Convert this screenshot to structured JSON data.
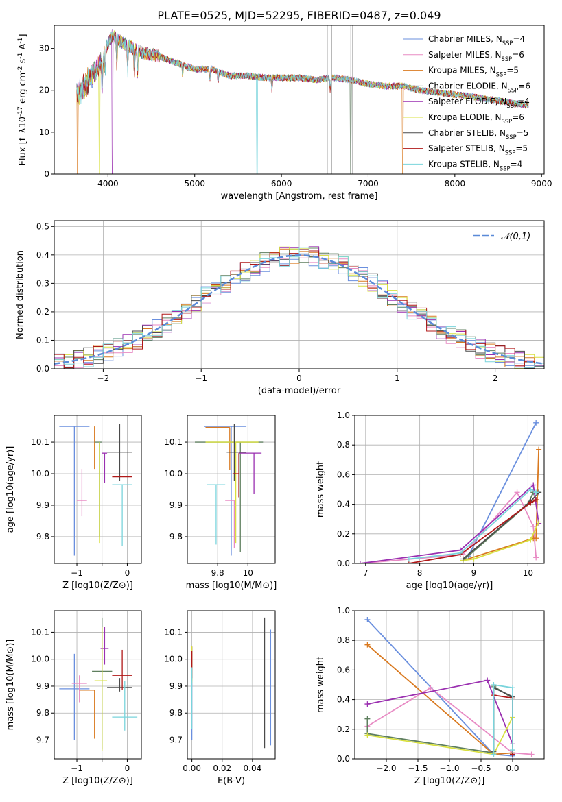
{
  "figure_title": "PLATE=0525, MJD=52295, FIBERID=0487, z=0.049",
  "colors": {
    "series": [
      "#6a8fde",
      "#e88bc4",
      "#d9791f",
      "#5f7f5f",
      "#9a2fb0",
      "#d8e040",
      "#4a4a4a",
      "#b01818",
      "#79d4dc"
    ],
    "gaussian": "#5a8ad8",
    "grid": "#b0b0b0",
    "telluric": "#b0b0b0"
  },
  "legend_spectrum": [
    "Chabrier MILES, N_{SSP}=4",
    "Salpeter MILES, N_{SSP}=6",
    "Kroupa MILES, N_{SSP}=5",
    "Chabrier ELODIE, N_{SSP}=6",
    "Salpeter ELODIE, N_{SSP}=4",
    "Kroupa ELODIE, N_{SSP}=6",
    "Chabrier STELIB, N_{SSP}=5",
    "Salpeter STELIB, N_{SSP}=5",
    "Kroupa STELIB, N_{SSP}=4"
  ],
  "chart_data": [
    {
      "id": "spectrum",
      "type": "line",
      "title": "PLATE=0525, MJD=52295, FIBERID=0487, z=0.049",
      "xlabel": "wavelength [Angstrom, rest frame]",
      "ylabel": "Flux [f_λ10^{-17} erg cm^{-2} s^{-1} A^{-1}]",
      "xlim": [
        3380,
        9030
      ],
      "ylim": [
        0,
        35.5
      ],
      "xticks": [
        4000,
        5000,
        6000,
        7000,
        8000,
        9000
      ],
      "yticks": [
        0,
        10,
        20,
        30
      ],
      "continuum": {
        "x": [
          3650,
          3800,
          3900,
          4000,
          4050,
          4200,
          4400,
          4600,
          4800,
          5000,
          5200,
          5400,
          5600,
          5800,
          6000,
          6200,
          6400,
          6600,
          6800,
          7000,
          7200,
          7400,
          7600,
          7800,
          8000,
          8200,
          8400,
          8600,
          8800
        ],
        "y": [
          21,
          25,
          28,
          31,
          33,
          31,
          29,
          28,
          26.5,
          25,
          25,
          23.5,
          23.5,
          23,
          23,
          23,
          22.5,
          23,
          22.5,
          21.5,
          21,
          21,
          20,
          19.5,
          19,
          18.5,
          17.8,
          17.2,
          16.5
        ]
      },
      "absorption_lines": [
        3933,
        3968,
        4102,
        4227,
        4304,
        4340,
        4861,
        5175,
        5270,
        5890,
        6563
      ],
      "dropouts": [
        {
          "series": 2,
          "x": 3650
        },
        {
          "series": 5,
          "x": 3900
        },
        {
          "series": 4,
          "x": 4050
        },
        {
          "series": 8,
          "x": 5720
        },
        {
          "series": 3,
          "x": 6800
        },
        {
          "series": 2,
          "x": 7400
        }
      ],
      "telluric_spikes": [
        6530,
        6580,
        6800,
        6820
      ]
    },
    {
      "id": "residuals",
      "type": "histogram",
      "xlabel": "(data-model)/error",
      "ylabel": "Normed distribution",
      "xlim": [
        -2.5,
        2.5
      ],
      "ylim": [
        0,
        0.52
      ],
      "xticks": [
        -2,
        -1,
        0,
        1,
        2
      ],
      "yticks": [
        0.0,
        0.1,
        0.2,
        0.3,
        0.4,
        0.5
      ],
      "bin_width": 0.1,
      "legend": "𝒩(0,1)",
      "gaussian": {
        "mean": 0,
        "sigma": 1
      }
    },
    {
      "id": "age-vs-Z",
      "type": "errorbar",
      "xlabel": "Z [log10(Z/Z⊙)]",
      "ylabel": "age  [log10(age/yr)]",
      "xlim": [
        -1.45,
        0.28
      ],
      "ylim": [
        9.715,
        10.185
      ],
      "xticks": [
        -1,
        -0.5,
        0
      ],
      "xticklabels": [
        "−1",
        "",
        "0"
      ],
      "yticks": [
        9.8,
        9.9,
        10.0,
        10.1
      ],
      "points": [
        {
          "x": -1.05,
          "y": 10.15,
          "xerr": [
            0.3,
            0.3
          ],
          "yerr": [
            0.41,
            0.0
          ]
        },
        {
          "x": -0.9,
          "y": 9.915,
          "xerr": [
            0.1,
            0.1
          ],
          "yerr": [
            0.05,
            0.1
          ]
        },
        {
          "x": -0.65,
          "y": 10.15,
          "xerr": [
            0.0,
            0.0
          ],
          "yerr": [
            0.135,
            0.0
          ]
        },
        {
          "x": -0.55,
          "y": 10.1,
          "xerr": [
            0.1,
            0.05
          ],
          "yerr": [
            0.3,
            0.0
          ]
        },
        {
          "x": -0.45,
          "y": 10.065,
          "xerr": [
            0.05,
            0.05
          ],
          "yerr": [
            0.095,
            0.0
          ]
        },
        {
          "x": -0.55,
          "y": 10.1,
          "xerr": [
            0.0,
            0.0
          ],
          "yerr": [
            0.32,
            0.0
          ]
        },
        {
          "x": -0.15,
          "y": 10.068,
          "xerr": [
            0.25,
            0.25
          ],
          "yerr": [
            0.09,
            0.09
          ]
        },
        {
          "x": -0.1,
          "y": 9.99,
          "xerr": [
            0.2,
            0.2
          ],
          "yerr": [
            0.0,
            0.0
          ]
        },
        {
          "x": -0.1,
          "y": 9.965,
          "xerr": [
            0.2,
            0.2
          ],
          "yerr": [
            0.195,
            0.0
          ]
        }
      ]
    },
    {
      "id": "age-vs-mass",
      "type": "errorbar",
      "xlabel": "mass [log10(M/M⊙)]",
      "xlim": [
        9.6,
        10.18
      ],
      "ylim": [
        9.715,
        10.185
      ],
      "xticks": [
        9.8,
        10.0
      ],
      "yticks": [
        9.8,
        9.9,
        10.0,
        10.1
      ],
      "points": [
        {
          "x": 9.89,
          "y": 10.15,
          "xerr": [
            0.18,
            0.1
          ],
          "yerr": [
            0.41,
            0.0
          ]
        },
        {
          "x": 9.91,
          "y": 9.915,
          "xerr": [
            0.06,
            0.0
          ],
          "yerr": [
            0.15,
            0.0
          ]
        },
        {
          "x": 9.88,
          "y": 10.147,
          "xerr": [
            0.16,
            0.0
          ],
          "yerr": [
            0.135,
            0.0
          ]
        },
        {
          "x": 9.95,
          "y": 10.1,
          "xerr": [
            0.3,
            0.15
          ],
          "yerr": [
            0.35,
            0.0
          ]
        },
        {
          "x": 10.04,
          "y": 10.065,
          "xerr": [
            0.1,
            0.05
          ],
          "yerr": [
            0.13,
            0.0
          ]
        },
        {
          "x": 9.92,
          "y": 10.1,
          "xerr": [
            0.2,
            0.15
          ],
          "yerr": [
            0.32,
            0.0
          ]
        },
        {
          "x": 9.91,
          "y": 10.068,
          "xerr": [
            0.05,
            0.08
          ],
          "yerr": [
            0.09,
            0.09
          ]
        },
        {
          "x": 9.94,
          "y": 10.0,
          "xerr": [
            0.04,
            0.0
          ],
          "yerr": [
            0.075,
            0.065
          ]
        },
        {
          "x": 9.79,
          "y": 9.965,
          "xerr": [
            0.06,
            0.06
          ],
          "yerr": [
            0.19,
            0.0
          ]
        }
      ]
    },
    {
      "id": "weight-vs-age",
      "type": "line",
      "xlabel": "age  [log10(age/yr)]",
      "ylabel": "mass weight",
      "xlim": [
        6.8,
        10.3
      ],
      "ylim": [
        0,
        1.0
      ],
      "xticks": [
        7,
        8,
        9,
        10
      ],
      "yticks": [
        0.0,
        0.2,
        0.4,
        0.6,
        0.8,
        1.0
      ],
      "series": [
        {
          "x": [
            8.9,
            10.15
          ],
          "y": [
            0.05,
            0.95
          ]
        },
        {
          "x": [
            6.9,
            8.8,
            9.8,
            10.1,
            10.15
          ],
          "y": [
            0.0,
            0.06,
            0.48,
            0.25,
            0.04
          ]
        },
        {
          "x": [
            8.8,
            10.1,
            10.15,
            10.2
          ],
          "y": [
            0.02,
            0.17,
            0.17,
            0.77
          ]
        },
        {
          "x": [
            8.8,
            10.0,
            10.1,
            10.2
          ],
          "y": [
            0.02,
            0.4,
            0.48,
            0.48
          ]
        },
        {
          "x": [
            6.9,
            8.75,
            10.1,
            10.2
          ],
          "y": [
            0.0,
            0.09,
            0.53,
            0.27
          ]
        },
        {
          "x": [
            8.8,
            9.0,
            10.05,
            10.2
          ],
          "y": [
            0.02,
            0.03,
            0.16,
            0.28
          ]
        },
        {
          "x": [
            8.8,
            10.05,
            10.2
          ],
          "y": [
            0.03,
            0.42,
            0.48
          ]
        },
        {
          "x": [
            7.8,
            8.75,
            10.05,
            10.15
          ],
          "y": [
            0.0,
            0.06,
            0.41,
            0.43
          ]
        },
        {
          "x": [
            7.8,
            8.75,
            10.05,
            10.15
          ],
          "y": [
            0.03,
            0.07,
            0.5,
            0.48
          ]
        }
      ]
    },
    {
      "id": "mass-vs-Z",
      "type": "errorbar",
      "xlabel": "Z [log10(Z/Z⊙)]",
      "ylabel": "mass [log10(M/M⊙)]",
      "xlim": [
        -1.45,
        0.28
      ],
      "ylim": [
        9.63,
        10.18
      ],
      "xticks": [
        -1,
        -0.5,
        0
      ],
      "xticklabels": [
        "−1",
        "",
        "0"
      ],
      "yticks": [
        9.7,
        9.8,
        9.9,
        10.0,
        10.1
      ],
      "points": [
        {
          "x": -1.05,
          "y": 9.89,
          "xerr": [
            0.3,
            0.3
          ],
          "yerr": [
            0.19,
            0.13
          ]
        },
        {
          "x": -0.95,
          "y": 9.91,
          "xerr": [
            0.15,
            0.15
          ],
          "yerr": [
            0.07,
            0.03
          ]
        },
        {
          "x": -0.65,
          "y": 9.885,
          "xerr": [
            0.3,
            0.0
          ],
          "yerr": [
            0.18,
            0.0
          ]
        },
        {
          "x": -0.5,
          "y": 9.955,
          "xerr": [
            0.2,
            0.2
          ],
          "yerr": [
            0.29,
            0.2
          ]
        },
        {
          "x": -0.45,
          "y": 10.04,
          "xerr": [
            0.08,
            0.08
          ],
          "yerr": [
            0.06,
            0.08
          ]
        },
        {
          "x": -0.5,
          "y": 9.92,
          "xerr": [
            0.15,
            0.1
          ],
          "yerr": [
            0.26,
            0.2
          ]
        },
        {
          "x": -0.15,
          "y": 9.895,
          "xerr": [
            0.25,
            0.25
          ],
          "yerr": [
            0.015,
            0.035
          ]
        },
        {
          "x": -0.1,
          "y": 9.94,
          "xerr": [
            0.2,
            0.2
          ],
          "yerr": [
            0.055,
            0.095
          ]
        },
        {
          "x": -0.05,
          "y": 9.785,
          "xerr": [
            0.25,
            0.25
          ],
          "yerr": [
            0.05,
            0.135
          ]
        }
      ]
    },
    {
      "id": "mass-vs-EBV",
      "type": "errorbar",
      "xlabel": "E(B-V)",
      "xlim": [
        -0.003,
        0.055
      ],
      "ylim": [
        9.63,
        10.18
      ],
      "xticks": [
        0.0,
        0.02,
        0.04
      ],
      "xticklabels": [
        "0.00",
        "0.02",
        "0.04"
      ],
      "yticks": [
        9.7,
        9.8,
        9.9,
        10.0,
        10.1
      ],
      "points": [
        {
          "x": 0.0,
          "y": 9.89,
          "xerr": [
            0,
            0
          ],
          "yerr": [
            0.19,
            0.13
          ]
        },
        {
          "x": 0.0,
          "y": 9.95,
          "xerr": [
            0,
            0
          ],
          "yerr": [
            0.2,
            0.06
          ]
        },
        {
          "x": 0.0,
          "y": 9.99,
          "xerr": [
            0,
            0
          ],
          "yerr": [
            0.07,
            0.04
          ]
        },
        {
          "x": 0.0,
          "y": 9.975,
          "xerr": [
            0,
            0
          ],
          "yerr": [
            0.05,
            0.07
          ]
        },
        {
          "x": 0.0,
          "y": 9.98,
          "xerr": [
            0,
            0
          ],
          "yerr": [
            0.05,
            0.07
          ]
        },
        {
          "x": 0.0,
          "y": 9.98,
          "xerr": [
            0,
            0
          ],
          "yerr": [
            0.07,
            0.07
          ]
        },
        {
          "x": 0.048,
          "y": 9.91,
          "xerr": [
            0,
            0
          ],
          "yerr": [
            0.24,
            0.245
          ]
        },
        {
          "x": 0.0,
          "y": 9.98,
          "xerr": [
            0,
            0
          ],
          "yerr": [
            0.05,
            0.05
          ]
        },
        {
          "x": 0.0,
          "y": 9.87,
          "xerr": [
            0,
            0
          ],
          "yerr": [
            0.13,
            0.1
          ]
        },
        {
          "x": 0.052,
          "y": 9.9,
          "xerr": [
            0,
            0
          ],
          "yerr": [
            0.22,
            0.21
          ]
        }
      ]
    },
    {
      "id": "weight-vs-Z",
      "type": "line",
      "xlabel": "Z [log10(Z/Z⊙)]",
      "ylabel": "mass weight",
      "xlim": [
        -2.5,
        0.5
      ],
      "ylim": [
        0,
        1.0
      ],
      "xticks": [
        -2.0,
        -1.5,
        -1.0,
        -0.5,
        0.0
      ],
      "xticklabels": [
        "−2.0",
        "−1.5",
        "−1.0",
        "−0.5",
        "0.0"
      ],
      "yticks": [
        0.0,
        0.2,
        0.4,
        0.6,
        0.8,
        1.0
      ],
      "series": [
        {
          "x": [
            -2.3,
            -0.3,
            0.0
          ],
          "y": [
            0.94,
            0.03,
            0.02
          ]
        },
        {
          "x": [
            -2.3,
            -1.3,
            0.0,
            0.3
          ],
          "y": [
            0.22,
            0.48,
            0.04,
            0.03
          ]
        },
        {
          "x": [
            -2.3,
            -0.3,
            0.0
          ],
          "y": [
            0.77,
            0.03,
            0.04
          ]
        },
        {
          "x": [
            -2.3,
            -2.3,
            -0.3,
            -0.3,
            0.0
          ],
          "y": [
            0.27,
            0.17,
            0.04,
            0.49,
            0.41
          ]
        },
        {
          "x": [
            -2.3,
            -0.4,
            0.0
          ],
          "y": [
            0.37,
            0.53,
            0.1
          ]
        },
        {
          "x": [
            -2.3,
            -0.3,
            0.0
          ],
          "y": [
            0.16,
            0.03,
            0.28
          ]
        },
        {
          "x": [
            -0.3,
            -0.3,
            0.0,
            0.0
          ],
          "y": [
            0.05,
            0.48,
            0.42,
            0.03
          ]
        },
        {
          "x": [
            -0.3,
            0.0,
            0.0
          ],
          "y": [
            0.43,
            0.41,
            0.03
          ]
        },
        {
          "x": [
            -0.3,
            -0.3,
            0.0,
            0.0
          ],
          "y": [
            0.03,
            0.5,
            0.48,
            0.06
          ]
        }
      ]
    }
  ]
}
